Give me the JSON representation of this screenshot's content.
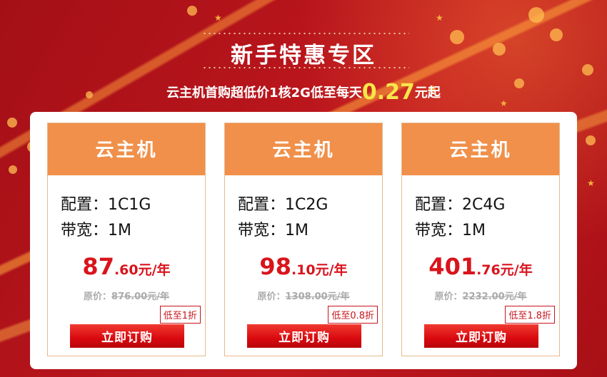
{
  "header": {
    "title": "新手特惠专区",
    "subtitle_prefix": "云主机首购超低价1核2G低至每天",
    "subtitle_price": "0.27",
    "subtitle_suffix": "元起"
  },
  "colors": {
    "background": "#b0141a",
    "card_header": "#f0904a",
    "price": "#d9141c",
    "accent_gold": "#f7e64a"
  },
  "cards": [
    {
      "title": "云主机",
      "config": "配置：1C1G",
      "bandwidth": "带宽：1M",
      "price_int": "87",
      "price_dec": ".60元/年",
      "orig_label": "原价：",
      "orig_value": "876.00元/年",
      "discount": "低至1折",
      "button": "立即订购"
    },
    {
      "title": "云主机",
      "config": "配置：1C2G",
      "bandwidth": "带宽：1M",
      "price_int": "98",
      "price_dec": ".10元/年",
      "orig_label": "原价：",
      "orig_value": "1308.00元/年",
      "discount": "低至0.8折",
      "button": "立即订购"
    },
    {
      "title": "云主机",
      "config": "配置：2C4G",
      "bandwidth": "带宽：1M",
      "price_int": "401",
      "price_dec": ".76元/年",
      "orig_label": "原价：",
      "orig_value": "2232.00元/年",
      "discount": "低至1.8折",
      "button": "立即订购"
    }
  ]
}
